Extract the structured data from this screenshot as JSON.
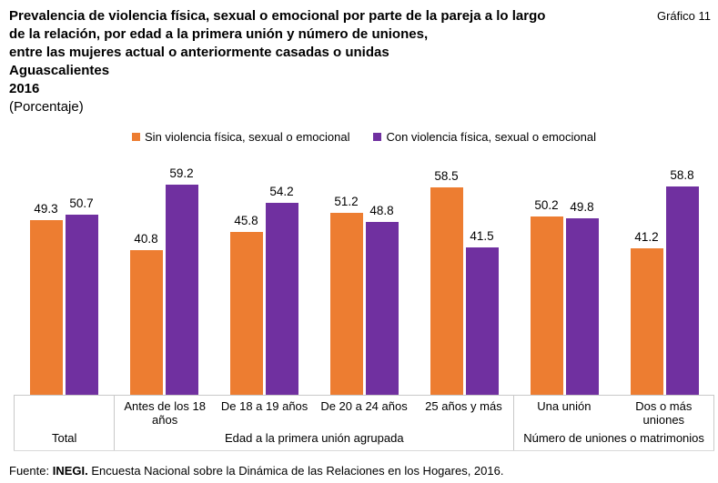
{
  "header": {
    "title_lines": [
      "Prevalencia de violencia física, sexual o emocional por parte de la pareja a lo largo",
      "de la relación, por edad a la primera unión y número de uniones,",
      "entre las mujeres actual o anteriormente casadas o unidas",
      "Aguascalientes",
      "2016",
      "(Porcentaje)"
    ],
    "corner_label": "Gráfico 11"
  },
  "chart_data": {
    "type": "bar",
    "title": "Prevalencia de violencia física, sexual o emocional por parte de la pareja a lo largo de la relación, por edad a la primera unión y número de uniones, entre las mujeres actual o anteriormente casadas o unidas, Aguascalientes, 2016",
    "unit": "Porcentaje",
    "legend_position": "top",
    "grid": false,
    "ylim": [
      0,
      65
    ],
    "categories": [
      "Total",
      "Antes de los 18 años",
      "De 18 a 19 años",
      "De 20 a 24 años",
      "25 años y más",
      "Una unión",
      "Dos o más uniones"
    ],
    "series": [
      {
        "name": "Sin violencia física, sexual o emocional",
        "color": "#ED7D31",
        "values": [
          49.3,
          40.8,
          45.8,
          51.2,
          58.5,
          50.2,
          41.2
        ]
      },
      {
        "name": "Con violencia física, sexual o emocional",
        "color": "#7030A0",
        "values": [
          50.7,
          59.2,
          54.2,
          48.8,
          41.5,
          49.8,
          58.8
        ]
      }
    ],
    "groups": [
      {
        "label": "Total",
        "span": 1,
        "show_category_labels": false
      },
      {
        "label": "Edad a la primera unión agrupada",
        "span": 4,
        "show_category_labels": true
      },
      {
        "label": "Número de uniones o matrimonios",
        "span": 2,
        "show_category_labels": true
      }
    ]
  },
  "source": {
    "prefix": "Fuente:",
    "bold": "INEGI.",
    "rest": "Encuesta Nacional sobre la Dinámica de las Relaciones en los Hogares, 2016."
  }
}
